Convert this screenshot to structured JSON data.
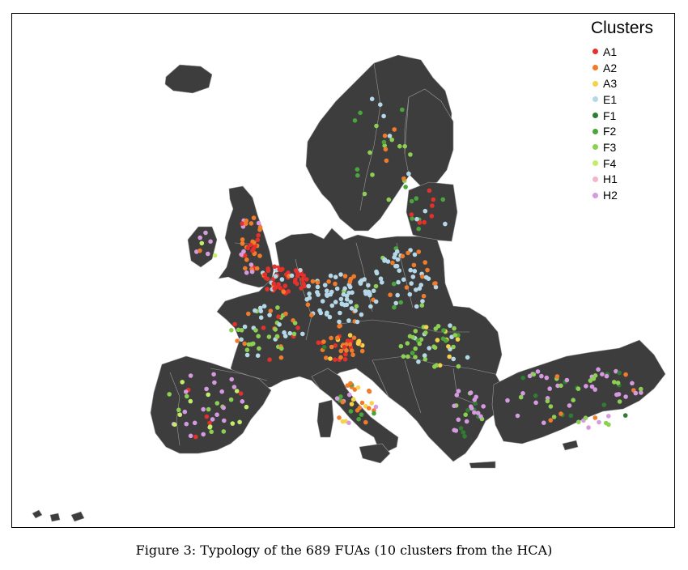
{
  "map": {
    "land_color": "#3d3d3d",
    "border_color": "#9a9a9a",
    "sea_color": "#ffffff"
  },
  "legend": {
    "title": "Clusters",
    "items": [
      {
        "label": "A1",
        "color": "#e4312b"
      },
      {
        "label": "A2",
        "color": "#f07b2b"
      },
      {
        "label": "A3",
        "color": "#f6d24a"
      },
      {
        "label": "E1",
        "color": "#b5d8e8"
      },
      {
        "label": "F1",
        "color": "#2f7d32"
      },
      {
        "label": "F2",
        "color": "#4aa63c"
      },
      {
        "label": "F3",
        "color": "#8ccf52"
      },
      {
        "label": "F4",
        "color": "#c2ec6a"
      },
      {
        "label": "H1",
        "color": "#f2b6c6"
      },
      {
        "label": "H2",
        "color": "#d59ae0"
      }
    ]
  },
  "caption": "Figure 3: Typology of the 689 FUAs (10 clusters from the HCA)"
}
